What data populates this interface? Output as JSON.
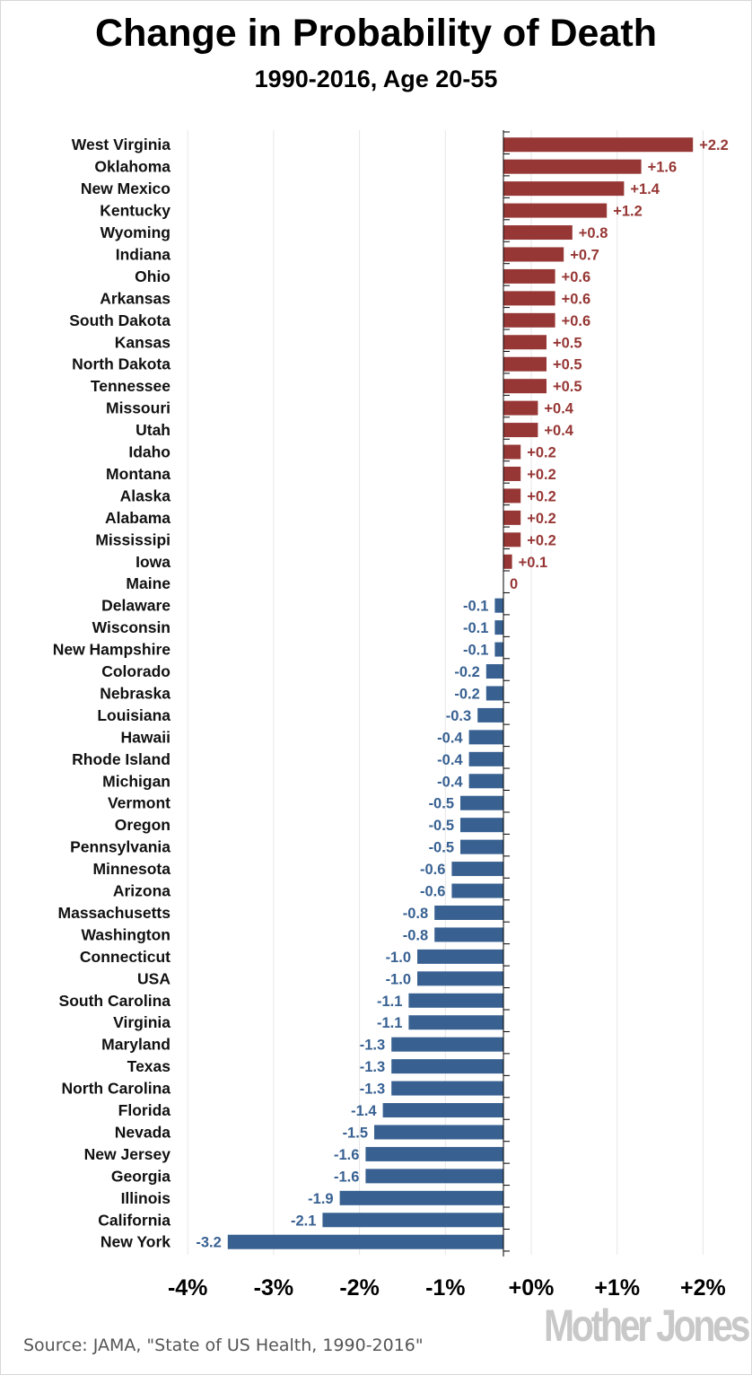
{
  "chart_data": {
    "type": "bar",
    "orientation": "horizontal",
    "title": "Change in Probability of Death",
    "subtitle": "1990-2016, Age 20-55",
    "xlabel": "",
    "ylabel": "",
    "xlim": [
      -4,
      2
    ],
    "x_ticks": [
      "-4%",
      "-3%",
      "-2%",
      "-1%",
      "+0%",
      "+1%",
      "+2%"
    ],
    "x_tick_values": [
      -4,
      -3,
      -2,
      -1,
      0,
      1,
      2
    ],
    "grid": true,
    "categories": [
      "West Virginia",
      "Oklahoma",
      "New Mexico",
      "Kentucky",
      "Wyoming",
      "Indiana",
      "Ohio",
      "Arkansas",
      "South Dakota",
      "Kansas",
      "North Dakota",
      "Tennessee",
      "Missouri",
      "Utah",
      "Idaho",
      "Montana",
      "Alaska",
      "Alabama",
      "Mississipi",
      "Iowa",
      "Maine",
      "Delaware",
      "Wisconsin",
      "New Hampshire",
      "Colorado",
      "Nebraska",
      "Louisiana",
      "Hawaii",
      "Rhode Island",
      "Michigan",
      "Vermont",
      "Oregon",
      "Pennsylvania",
      "Minnesota",
      "Arizona",
      "Massachusetts",
      "Washington",
      "Connecticut",
      "USA",
      "South Carolina",
      "Virginia",
      "Maryland",
      "Texas",
      "North Carolina",
      "Florida",
      "Nevada",
      "New Jersey",
      "Georgia",
      "Illinois",
      "California",
      "New York"
    ],
    "values": [
      2.2,
      1.6,
      1.4,
      1.2,
      0.8,
      0.7,
      0.6,
      0.6,
      0.6,
      0.5,
      0.5,
      0.5,
      0.4,
      0.4,
      0.2,
      0.2,
      0.2,
      0.2,
      0.2,
      0.1,
      0,
      -0.1,
      -0.1,
      -0.1,
      -0.2,
      -0.2,
      -0.3,
      -0.4,
      -0.4,
      -0.4,
      -0.5,
      -0.5,
      -0.5,
      -0.6,
      -0.6,
      -0.8,
      -0.8,
      -1.0,
      -1.0,
      -1.1,
      -1.1,
      -1.3,
      -1.3,
      -1.3,
      -1.4,
      -1.5,
      -1.6,
      -1.6,
      -1.9,
      -2.1,
      -3.2
    ],
    "data_labels": [
      "+2.2",
      "+1.6",
      "+1.4",
      "+1.2",
      "+0.8",
      "+0.7",
      "+0.6",
      "+0.6",
      "+0.6",
      "+0.5",
      "+0.5",
      "+0.5",
      "+0.4",
      "+0.4",
      "+0.2",
      "+0.2",
      "+0.2",
      "+0.2",
      "+0.2",
      "+0.1",
      "0",
      "-0.1",
      "-0.1",
      "-0.1",
      "-0.2",
      "-0.2",
      "-0.3",
      "-0.4",
      "-0.4",
      "-0.4",
      "-0.5",
      "-0.5",
      "-0.5",
      "-0.6",
      "-0.6",
      "-0.8",
      "-0.8",
      "-1.0",
      "-1.0",
      "-1.1",
      "-1.1",
      "-1.3",
      "-1.3",
      "-1.3",
      "-1.4",
      "-1.5",
      "-1.6",
      "-1.6",
      "-1.9",
      "-2.1",
      "-3.2"
    ],
    "colors": {
      "positive": "#963735",
      "negative": "#386192"
    }
  },
  "source": "Source: JAMA, \"State of US Health, 1990-2016\"",
  "logo": "Mother Jones"
}
